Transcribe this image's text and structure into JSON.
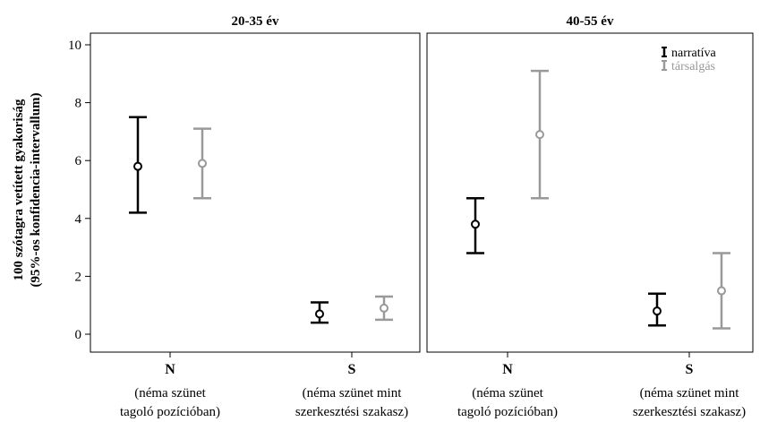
{
  "chart_data": {
    "type": "errorbar",
    "ylabel_lines": [
      "100 szótagra vetített gyakoriság",
      "(95%-os konfidencia-intervallum)"
    ],
    "ylim": [
      0,
      10
    ],
    "y_ticks": [
      "0",
      "2",
      "4",
      "6",
      "8",
      "10"
    ],
    "categories": [
      {
        "code": "N",
        "desc_lines": [
          "(néma szünet",
          "tagoló pozícióban)"
        ]
      },
      {
        "code": "S",
        "desc_lines": [
          "(néma szünet mint",
          "szerkesztési szakasz)"
        ]
      }
    ],
    "legend": [
      {
        "name": "narratíva",
        "color": "#000000"
      },
      {
        "name": "társalgás",
        "color": "#999999"
      }
    ],
    "panels": [
      {
        "title": "20-35 év",
        "series": [
          {
            "name": "narratíva",
            "points": [
              {
                "mean": 5.8,
                "low": 4.2,
                "high": 7.5
              },
              {
                "mean": 0.7,
                "low": 0.4,
                "high": 1.1
              }
            ]
          },
          {
            "name": "társalgás",
            "points": [
              {
                "mean": 5.9,
                "low": 4.7,
                "high": 7.1
              },
              {
                "mean": 0.9,
                "low": 0.5,
                "high": 1.3
              }
            ]
          }
        ]
      },
      {
        "title": "40-55 év",
        "series": [
          {
            "name": "narratíva",
            "points": [
              {
                "mean": 3.8,
                "low": 2.8,
                "high": 4.7
              },
              {
                "mean": 0.8,
                "low": 0.3,
                "high": 1.4
              }
            ]
          },
          {
            "name": "társalgás",
            "points": [
              {
                "mean": 6.9,
                "low": 4.7,
                "high": 9.1
              },
              {
                "mean": 1.5,
                "low": 0.2,
                "high": 2.8
              }
            ]
          }
        ]
      }
    ]
  }
}
